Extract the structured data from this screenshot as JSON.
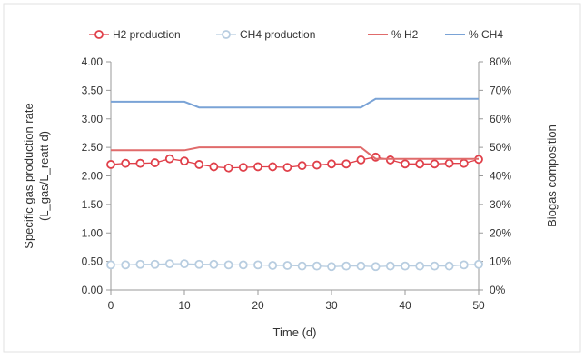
{
  "chart_data": {
    "type": "line",
    "xlabel": "Time (d)",
    "ylabel": "Specific gas production rate (L_gas/L_reatt d)",
    "ylabel_lines": [
      "Specific gas production rate",
      "(L_gas/L_reatt d)"
    ],
    "y2label": "Biogas composition",
    "xlim": [
      0,
      50
    ],
    "ylim": [
      0,
      4
    ],
    "y2lim": [
      0,
      80
    ],
    "x_ticks": [
      "0",
      "10",
      "20",
      "30",
      "40",
      "50"
    ],
    "y_ticks": [
      "0.00",
      "0.50",
      "1.00",
      "1.50",
      "2.00",
      "2.50",
      "3.00",
      "3.50",
      "4.00"
    ],
    "y2_ticks": [
      "0%",
      "10%",
      "20%",
      "30%",
      "40%",
      "50%",
      "60%",
      "70%",
      "80%"
    ],
    "legend_position": "top",
    "grid": false,
    "series": [
      {
        "name": "H2 production",
        "axis": "left",
        "style": "line-marker",
        "color": "#e0404a",
        "x": [
          0,
          2,
          4,
          6,
          8,
          10,
          12,
          14,
          16,
          18,
          20,
          22,
          24,
          26,
          28,
          30,
          32,
          34,
          36,
          38,
          40,
          42,
          44,
          46,
          48,
          50
        ],
        "y": [
          2.2,
          2.22,
          2.22,
          2.23,
          2.3,
          2.26,
          2.2,
          2.16,
          2.14,
          2.15,
          2.16,
          2.16,
          2.15,
          2.18,
          2.19,
          2.21,
          2.21,
          2.28,
          2.33,
          2.28,
          2.21,
          2.21,
          2.21,
          2.22,
          2.22,
          2.29
        ]
      },
      {
        "name": "CH4 production",
        "axis": "left",
        "style": "line-marker",
        "color": "#b8cde0",
        "x": [
          0,
          2,
          4,
          6,
          8,
          10,
          12,
          14,
          16,
          18,
          20,
          22,
          24,
          26,
          28,
          30,
          32,
          34,
          36,
          38,
          40,
          42,
          44,
          46,
          48,
          50
        ],
        "y": [
          0.44,
          0.44,
          0.45,
          0.45,
          0.46,
          0.46,
          0.45,
          0.45,
          0.44,
          0.44,
          0.44,
          0.43,
          0.43,
          0.42,
          0.42,
          0.41,
          0.42,
          0.42,
          0.41,
          0.42,
          0.42,
          0.42,
          0.42,
          0.42,
          0.44,
          0.45
        ]
      },
      {
        "name": "% H2",
        "axis": "right",
        "style": "line",
        "color": "#e06b6b",
        "x": [
          0,
          10,
          12,
          34,
          36,
          50
        ],
        "y": [
          49,
          49,
          50,
          50,
          46,
          46
        ]
      },
      {
        "name": "% CH4",
        "axis": "right",
        "style": "line",
        "color": "#7aa3d6",
        "x": [
          0,
          10,
          12,
          34,
          36,
          50
        ],
        "y": [
          66,
          66,
          64,
          64,
          67,
          67
        ]
      }
    ]
  }
}
